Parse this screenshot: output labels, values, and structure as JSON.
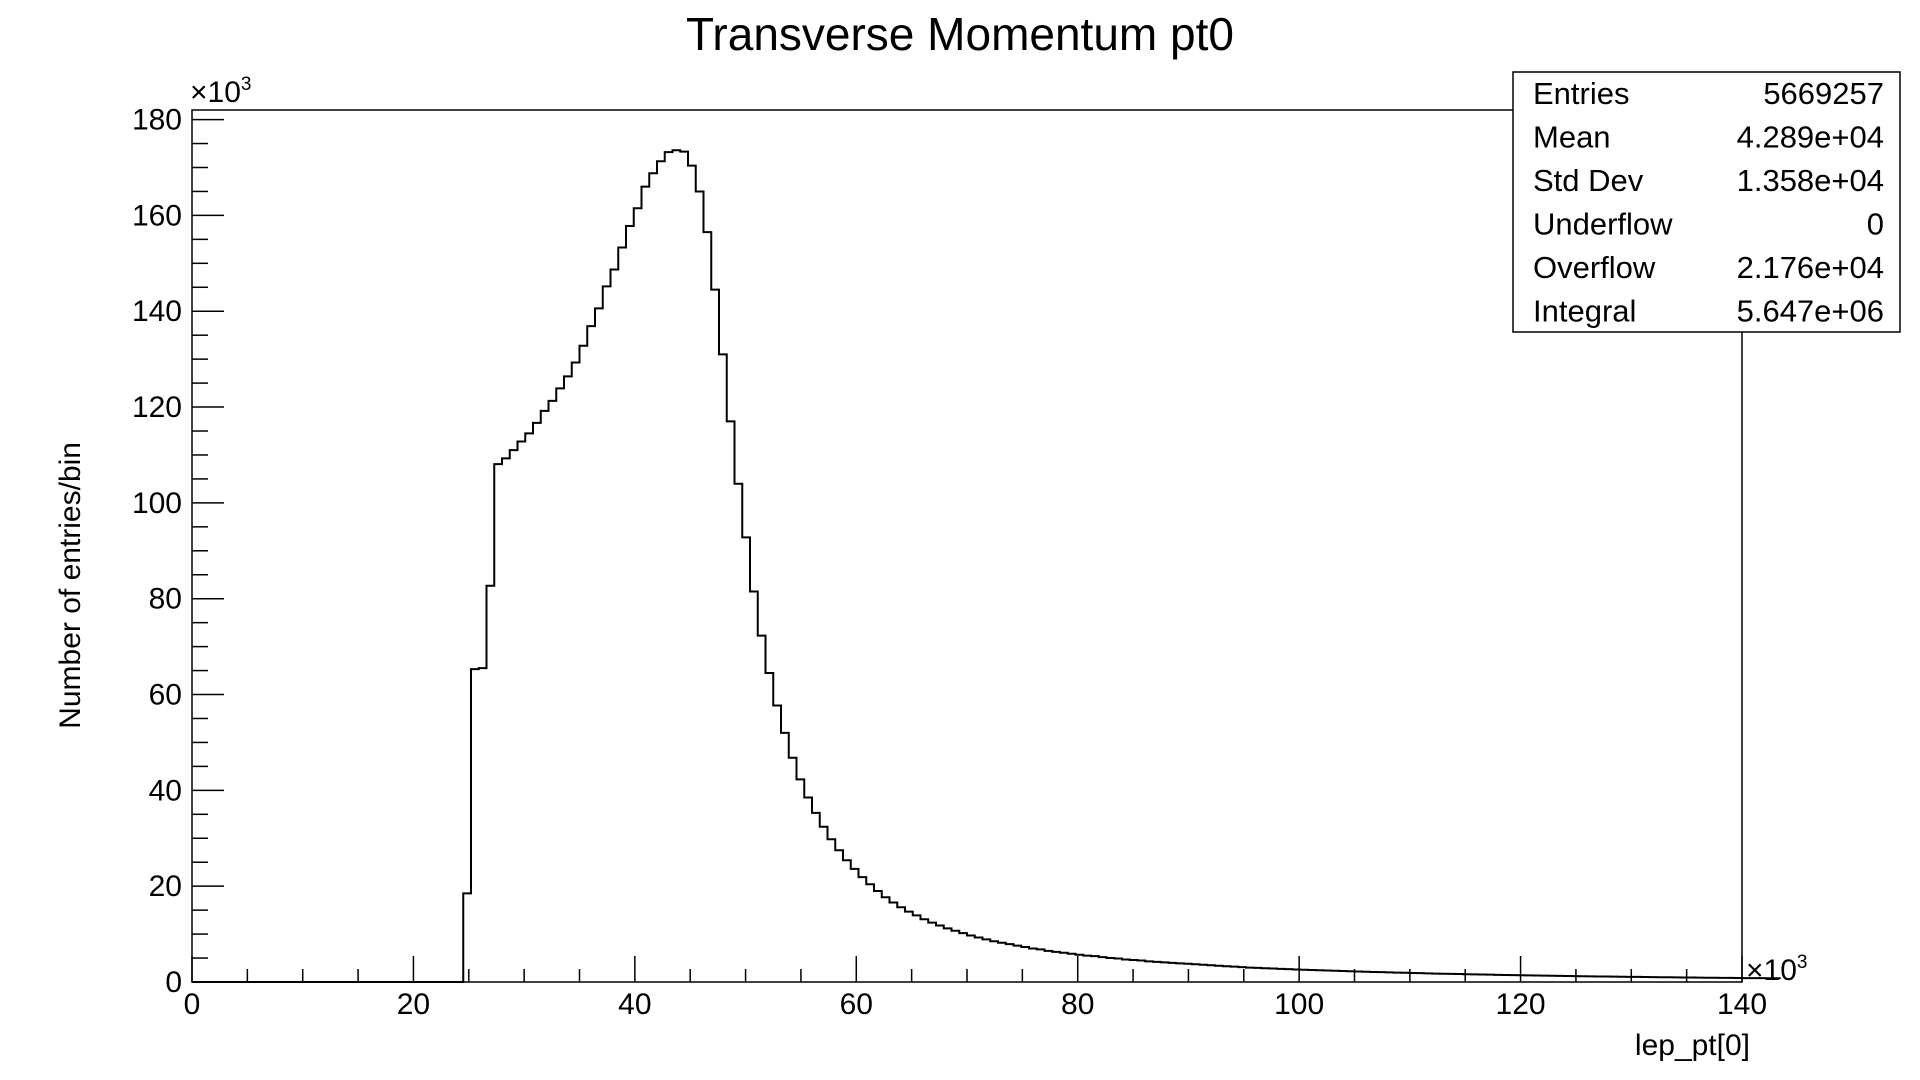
{
  "chart_data": {
    "type": "histogram",
    "title": "Transverse Momentum pt0",
    "xlabel": "lep_pt[0]",
    "ylabel": "Number of entries/bin",
    "x_multiplier": "×10",
    "x_multiplier_exp": "3",
    "y_multiplier": "×10",
    "y_multiplier_exp": "3",
    "xlim": [
      0,
      140
    ],
    "ylim": [
      0,
      182
    ],
    "x_ticks": [
      0,
      20,
      40,
      60,
      80,
      100,
      120,
      140
    ],
    "x_tick_labels": [
      "0",
      "20",
      "40",
      "60",
      "80",
      "100",
      "120",
      "140"
    ],
    "y_ticks": [
      0,
      20,
      40,
      60,
      80,
      100,
      120,
      140,
      160,
      180
    ],
    "y_tick_labels": [
      "0",
      "20",
      "40",
      "60",
      "80",
      "100",
      "120",
      "140",
      "160",
      "180"
    ],
    "bin_width": 0.7,
    "bin_start": 24.5,
    "bin_values": [
      18.5,
      65.3,
      65.5,
      82.7,
      108.1,
      109.3,
      111.0,
      112.8,
      114.5,
      116.7,
      119.2,
      121.3,
      123.9,
      126.4,
      129.3,
      132.8,
      136.9,
      140.6,
      145.2,
      148.7,
      153.3,
      157.8,
      161.5,
      166.0,
      168.8,
      171.3,
      173.2,
      173.6,
      173.3,
      170.4,
      165.0,
      156.5,
      144.5,
      131.0,
      117.0,
      104.0,
      92.8,
      81.5,
      72.3,
      64.5,
      57.7,
      52.0,
      46.8,
      42.3,
      38.5,
      35.3,
      32.4,
      29.8,
      27.5,
      25.4,
      23.6,
      21.9,
      20.4,
      19.0,
      17.7,
      16.6,
      15.6,
      14.7,
      13.9,
      13.1,
      12.4,
      11.8,
      11.2,
      10.7,
      10.2,
      9.7,
      9.3,
      8.9,
      8.5,
      8.2,
      7.9,
      7.6,
      7.3,
      7.0,
      6.8,
      6.5,
      6.3,
      6.1,
      5.9,
      5.7,
      5.5,
      5.4,
      5.2,
      5.0,
      4.9,
      4.7,
      4.6,
      4.5,
      4.3,
      4.2,
      4.1,
      4.0,
      3.9,
      3.8,
      3.7,
      3.6,
      3.5,
      3.4,
      3.3,
      3.2,
      3.1,
      3.0,
      2.95,
      2.88,
      2.81,
      2.74,
      2.68,
      2.62,
      2.56,
      2.5,
      2.44,
      2.39,
      2.34,
      2.29,
      2.24,
      2.19,
      2.14,
      2.09,
      2.05,
      2.0,
      1.96,
      1.92,
      1.88,
      1.84,
      1.8,
      1.76,
      1.73,
      1.69,
      1.66,
      1.62,
      1.59,
      1.56,
      1.53,
      1.5,
      1.47,
      1.44,
      1.41,
      1.38,
      1.35,
      1.33,
      1.3,
      1.28,
      1.25,
      1.23,
      1.2,
      1.18,
      1.16,
      1.14,
      1.12,
      1.1,
      1.08,
      1.06,
      1.04,
      1.02,
      1.0,
      0.98,
      0.96,
      0.95,
      0.93,
      0.91,
      0.9,
      0.88,
      0.87,
      0.85,
      0.84,
      0.82,
      0.81,
      0.8,
      0.78,
      0.77
    ]
  },
  "stats_box": {
    "rows": [
      {
        "label": "Entries",
        "value": "5669257"
      },
      {
        "label": "Mean",
        "value": "4.289e+04"
      },
      {
        "label": "Std Dev",
        "value": "1.358e+04"
      },
      {
        "label": "Underflow",
        "value": "0"
      },
      {
        "label": "Overflow",
        "value": "2.176e+04"
      },
      {
        "label": "Integral",
        "value": "5.647e+06"
      }
    ]
  }
}
